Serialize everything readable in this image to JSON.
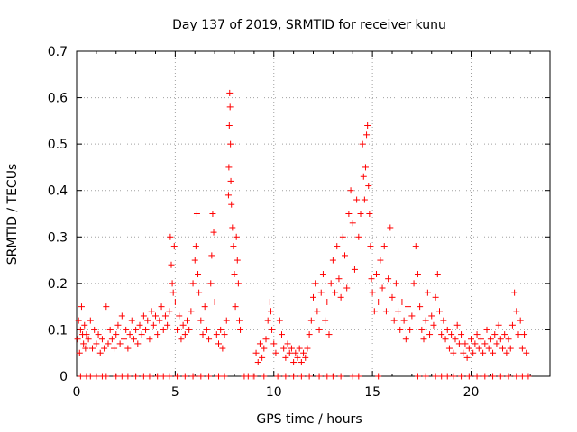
{
  "chart_data": {
    "type": "scatter",
    "title": "Day 137 of 2019, SRMTID for receiver kunu",
    "xlabel": "GPS time / hours",
    "ylabel": "SRMTID / TECUs",
    "xlim": [
      0,
      24
    ],
    "ylim": [
      0,
      0.7
    ],
    "xticks": [
      "0",
      "5",
      "10",
      "15",
      "20"
    ],
    "yticks": [
      "0",
      "0.1",
      "0.2",
      "0.3",
      "0.4",
      "0.5",
      "0.6",
      "0.7"
    ],
    "grid": true,
    "marker": "+",
    "color": "#ff0000",
    "series": [
      {
        "name": "SRMTID",
        "points": [
          [
            0.05,
            0.08
          ],
          [
            0.1,
            0.12
          ],
          [
            0.15,
            0.05
          ],
          [
            0.2,
            0.1
          ],
          [
            0.25,
            0.15
          ],
          [
            0.3,
            0.09
          ],
          [
            0.35,
            0.07
          ],
          [
            0.4,
            0.11
          ],
          [
            0.45,
            0.06
          ],
          [
            0.5,
            0.09
          ],
          [
            0.6,
            0.08
          ],
          [
            0.7,
            0.12
          ],
          [
            0.8,
            0.06
          ],
          [
            0.9,
            0.1
          ],
          [
            1.0,
            0.07
          ],
          [
            1.1,
            0.09
          ],
          [
            1.2,
            0.05
          ],
          [
            1.3,
            0.08
          ],
          [
            1.4,
            0.06
          ],
          [
            1.5,
            0.15
          ],
          [
            1.6,
            0.07
          ],
          [
            1.7,
            0.1
          ],
          [
            1.8,
            0.08
          ],
          [
            1.9,
            0.06
          ],
          [
            2.0,
            0.09
          ],
          [
            2.1,
            0.11
          ],
          [
            2.2,
            0.07
          ],
          [
            2.3,
            0.13
          ],
          [
            2.4,
            0.08
          ],
          [
            2.5,
            0.1
          ],
          [
            2.6,
            0.06
          ],
          [
            2.7,
            0.09
          ],
          [
            2.8,
            0.12
          ],
          [
            2.9,
            0.08
          ],
          [
            3.0,
            0.1
          ],
          [
            3.1,
            0.07
          ],
          [
            3.2,
            0.11
          ],
          [
            3.3,
            0.09
          ],
          [
            3.4,
            0.13
          ],
          [
            3.5,
            0.1
          ],
          [
            3.6,
            0.12
          ],
          [
            3.7,
            0.08
          ],
          [
            3.8,
            0.14
          ],
          [
            3.9,
            0.11
          ],
          [
            4.0,
            0.13
          ],
          [
            4.1,
            0.09
          ],
          [
            4.2,
            0.12
          ],
          [
            4.3,
            0.15
          ],
          [
            4.4,
            0.1
          ],
          [
            4.5,
            0.13
          ],
          [
            4.6,
            0.11
          ],
          [
            4.7,
            0.14
          ],
          [
            4.75,
            0.3
          ],
          [
            4.8,
            0.24
          ],
          [
            4.85,
            0.2
          ],
          [
            4.9,
            0.18
          ],
          [
            4.95,
            0.28
          ],
          [
            5.0,
            0.16
          ],
          [
            5.1,
            0.1
          ],
          [
            5.2,
            0.13
          ],
          [
            5.3,
            0.08
          ],
          [
            5.4,
            0.11
          ],
          [
            5.5,
            0.09
          ],
          [
            5.6,
            0.12
          ],
          [
            5.7,
            0.1
          ],
          [
            5.8,
            0.14
          ],
          [
            5.9,
            0.2
          ],
          [
            6.0,
            0.25
          ],
          [
            6.05,
            0.28
          ],
          [
            6.1,
            0.35
          ],
          [
            6.15,
            0.22
          ],
          [
            6.2,
            0.18
          ],
          [
            6.3,
            0.12
          ],
          [
            6.4,
            0.09
          ],
          [
            6.5,
            0.15
          ],
          [
            6.6,
            0.1
          ],
          [
            6.7,
            0.08
          ],
          [
            6.8,
            0.2
          ],
          [
            6.85,
            0.26
          ],
          [
            6.9,
            0.35
          ],
          [
            6.95,
            0.31
          ],
          [
            7.0,
            0.16
          ],
          [
            7.1,
            0.09
          ],
          [
            7.2,
            0.07
          ],
          [
            7.3,
            0.1
          ],
          [
            7.4,
            0.06
          ],
          [
            7.5,
            0.09
          ],
          [
            7.6,
            0.12
          ],
          [
            7.7,
            0.39
          ],
          [
            7.72,
            0.45
          ],
          [
            7.74,
            0.54
          ],
          [
            7.76,
            0.61
          ],
          [
            7.78,
            0.58
          ],
          [
            7.8,
            0.5
          ],
          [
            7.82,
            0.42
          ],
          [
            7.85,
            0.37
          ],
          [
            7.9,
            0.32
          ],
          [
            7.95,
            0.28
          ],
          [
            8.0,
            0.22
          ],
          [
            8.05,
            0.15
          ],
          [
            8.1,
            0.3
          ],
          [
            8.15,
            0.25
          ],
          [
            8.2,
            0.2
          ],
          [
            8.25,
            0.12
          ],
          [
            8.3,
            0.1
          ],
          [
            9.1,
            0.05
          ],
          [
            9.2,
            0.03
          ],
          [
            9.3,
            0.07
          ],
          [
            9.4,
            0.04
          ],
          [
            9.5,
            0.06
          ],
          [
            9.6,
            0.08
          ],
          [
            9.7,
            0.12
          ],
          [
            9.8,
            0.16
          ],
          [
            9.85,
            0.14
          ],
          [
            9.9,
            0.1
          ],
          [
            10.0,
            0.07
          ],
          [
            10.1,
            0.05
          ],
          [
            10.3,
            0.12
          ],
          [
            10.4,
            0.09
          ],
          [
            10.5,
            0.06
          ],
          [
            10.6,
            0.04
          ],
          [
            10.7,
            0.07
          ],
          [
            10.8,
            0.05
          ],
          [
            10.9,
            0.06
          ],
          [
            11.0,
            0.03
          ],
          [
            11.1,
            0.05
          ],
          [
            11.2,
            0.04
          ],
          [
            11.3,
            0.06
          ],
          [
            11.4,
            0.03
          ],
          [
            11.5,
            0.05
          ],
          [
            11.6,
            0.04
          ],
          [
            11.7,
            0.06
          ],
          [
            11.8,
            0.09
          ],
          [
            11.9,
            0.12
          ],
          [
            12.0,
            0.17
          ],
          [
            12.1,
            0.2
          ],
          [
            12.2,
            0.14
          ],
          [
            12.3,
            0.1
          ],
          [
            12.4,
            0.18
          ],
          [
            12.5,
            0.22
          ],
          [
            12.6,
            0.12
          ],
          [
            12.7,
            0.16
          ],
          [
            12.8,
            0.09
          ],
          [
            12.9,
            0.2
          ],
          [
            13.0,
            0.25
          ],
          [
            13.1,
            0.18
          ],
          [
            13.2,
            0.28
          ],
          [
            13.3,
            0.21
          ],
          [
            13.4,
            0.17
          ],
          [
            13.5,
            0.3
          ],
          [
            13.6,
            0.26
          ],
          [
            13.7,
            0.19
          ],
          [
            13.8,
            0.35
          ],
          [
            13.9,
            0.4
          ],
          [
            14.0,
            0.33
          ],
          [
            14.1,
            0.23
          ],
          [
            14.2,
            0.38
          ],
          [
            14.3,
            0.3
          ],
          [
            14.4,
            0.35
          ],
          [
            14.5,
            0.5
          ],
          [
            14.55,
            0.43
          ],
          [
            14.6,
            0.38
          ],
          [
            14.65,
            0.45
          ],
          [
            14.7,
            0.52
          ],
          [
            14.75,
            0.54
          ],
          [
            14.8,
            0.41
          ],
          [
            14.85,
            0.35
          ],
          [
            14.9,
            0.28
          ],
          [
            14.95,
            0.21
          ],
          [
            15.0,
            0.18
          ],
          [
            15.1,
            0.14
          ],
          [
            15.2,
            0.22
          ],
          [
            15.3,
            0.16
          ],
          [
            15.4,
            0.25
          ],
          [
            15.5,
            0.19
          ],
          [
            15.6,
            0.28
          ],
          [
            15.7,
            0.14
          ],
          [
            15.8,
            0.21
          ],
          [
            15.9,
            0.32
          ],
          [
            16.0,
            0.17
          ],
          [
            16.1,
            0.12
          ],
          [
            16.2,
            0.2
          ],
          [
            16.3,
            0.14
          ],
          [
            16.4,
            0.1
          ],
          [
            16.5,
            0.16
          ],
          [
            16.6,
            0.12
          ],
          [
            16.7,
            0.08
          ],
          [
            16.8,
            0.15
          ],
          [
            16.9,
            0.1
          ],
          [
            17.0,
            0.13
          ],
          [
            17.1,
            0.2
          ],
          [
            17.2,
            0.28
          ],
          [
            17.3,
            0.22
          ],
          [
            17.4,
            0.15
          ],
          [
            17.5,
            0.1
          ],
          [
            17.6,
            0.08
          ],
          [
            17.7,
            0.12
          ],
          [
            17.8,
            0.18
          ],
          [
            17.9,
            0.09
          ],
          [
            18.0,
            0.13
          ],
          [
            18.1,
            0.11
          ],
          [
            18.2,
            0.17
          ],
          [
            18.3,
            0.22
          ],
          [
            18.4,
            0.14
          ],
          [
            18.5,
            0.09
          ],
          [
            18.6,
            0.12
          ],
          [
            18.7,
            0.08
          ],
          [
            18.8,
            0.1
          ],
          [
            18.9,
            0.06
          ],
          [
            19.0,
            0.09
          ],
          [
            19.1,
            0.05
          ],
          [
            19.2,
            0.08
          ],
          [
            19.3,
            0.11
          ],
          [
            19.4,
            0.07
          ],
          [
            19.5,
            0.09
          ],
          [
            19.6,
            0.05
          ],
          [
            19.7,
            0.07
          ],
          [
            19.8,
            0.04
          ],
          [
            19.9,
            0.06
          ],
          [
            20.0,
            0.08
          ],
          [
            20.1,
            0.05
          ],
          [
            20.2,
            0.07
          ],
          [
            20.3,
            0.09
          ],
          [
            20.4,
            0.06
          ],
          [
            20.5,
            0.08
          ],
          [
            20.6,
            0.05
          ],
          [
            20.7,
            0.07
          ],
          [
            20.8,
            0.1
          ],
          [
            20.9,
            0.06
          ],
          [
            21.0,
            0.08
          ],
          [
            21.1,
            0.05
          ],
          [
            21.2,
            0.09
          ],
          [
            21.3,
            0.07
          ],
          [
            21.4,
            0.11
          ],
          [
            21.5,
            0.08
          ],
          [
            21.6,
            0.06
          ],
          [
            21.7,
            0.09
          ],
          [
            21.8,
            0.05
          ],
          [
            21.9,
            0.08
          ],
          [
            22.0,
            0.06
          ],
          [
            22.1,
            0.11
          ],
          [
            22.2,
            0.18
          ],
          [
            22.3,
            0.14
          ],
          [
            22.4,
            0.09
          ],
          [
            22.5,
            0.12
          ],
          [
            22.6,
            0.06
          ],
          [
            22.7,
            0.09
          ],
          [
            22.8,
            0.05
          ]
        ]
      }
    ],
    "zero_markers": [
      0.2,
      0.5,
      0.7,
      1.0,
      1.3,
      1.5,
      2.0,
      2.3,
      2.6,
      3.0,
      3.4,
      3.7,
      4.1,
      4.4,
      4.7,
      5.1,
      5.5,
      5.9,
      6.3,
      6.7,
      7.2,
      7.5,
      8.5,
      8.7,
      8.9,
      9.0,
      9.5,
      10.2,
      10.6,
      11.0,
      11.4,
      11.8,
      12.3,
      12.7,
      13.0,
      13.4,
      14.0,
      14.3,
      15.3,
      17.3,
      17.7,
      18.2,
      18.5,
      18.8,
      19.1,
      19.5,
      19.9,
      20.3,
      20.7,
      21.1,
      21.5,
      21.9,
      22.3,
      22.6,
      22.9
    ]
  }
}
